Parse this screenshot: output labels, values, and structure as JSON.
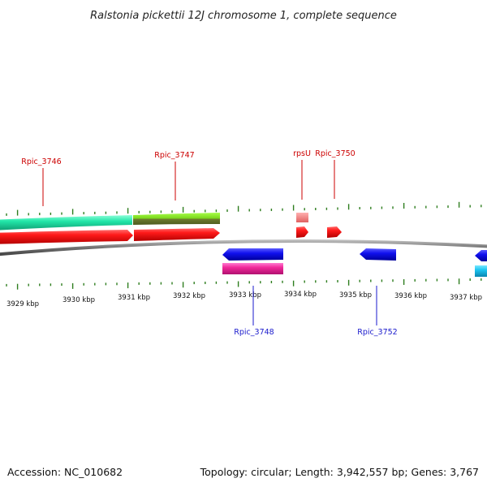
{
  "title": "Ralstonia pickettii 12J chromosome 1, complete sequence",
  "footer": {
    "accession": "Accession: NC_010682",
    "summary": "Topology: circular; Length: 3,942,557 bp; Genes: 3,767"
  },
  "colors": {
    "tick": "#2e7d1e",
    "forward_label": "#cc0000",
    "reverse_label": "#1a1acc",
    "backbone": "#8a8a8a"
  },
  "scale": {
    "unit": "kbp",
    "labels": [
      "3929 kbp",
      "3930 kbp",
      "3931 kbp",
      "3932 kbp",
      "3933 kbp",
      "3934 kbp",
      "3935 kbp",
      "3936 kbp",
      "3937 kbp"
    ]
  },
  "genes": {
    "top_labels": [
      "Rpic_3746",
      "Rpic_3747",
      "rpsU",
      "Rpic_3750"
    ],
    "bottom_labels": [
      "Rpic_3748",
      "Rpic_3752"
    ]
  }
}
